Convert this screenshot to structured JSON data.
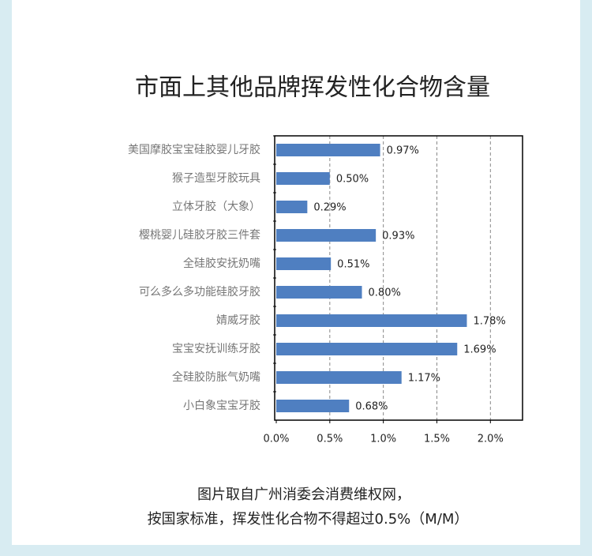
{
  "chart_data": {
    "type": "bar",
    "orientation": "horizontal",
    "title": "市面上其他品牌挥发性化合物含量",
    "categories": [
      "美国摩胶宝宝硅胶婴儿牙胶",
      "猴子造型牙胶玩具",
      "立体牙胶（大象）",
      "樱桃婴儿硅胶牙胶三件套",
      "全硅胶安抚奶嘴",
      "可么多么多功能硅胶牙胶",
      "婧威牙胶",
      "宝宝安抚训练牙胶",
      "全硅胶防胀气奶嘴",
      "小白象宝宝牙胶"
    ],
    "values": [
      0.97,
      0.5,
      0.29,
      0.93,
      0.51,
      0.8,
      1.78,
      1.69,
      1.17,
      0.68
    ],
    "value_labels": [
      "0.97%",
      "0.50%",
      "0.29%",
      "0.93%",
      "0.51%",
      "0.80%",
      "1.78%",
      "1.69%",
      "1.17%",
      "0.68%"
    ],
    "color": "#4f7fc1",
    "xlim": [
      0,
      2.3
    ],
    "xticks": [
      {
        "value": 0,
        "label": "0.0%"
      },
      {
        "value": 0.5,
        "label": "0.5%"
      },
      {
        "value": 1.0,
        "label": "1.0%"
      },
      {
        "value": 1.5,
        "label": "1.5%"
      },
      {
        "value": 2.0,
        "label": "2.0%"
      }
    ],
    "grid": true,
    "notes": [
      "图片取自广州消委会消费维权网，",
      "按国家标准，挥发性化合物不得超过0.5%（M/M）"
    ]
  }
}
